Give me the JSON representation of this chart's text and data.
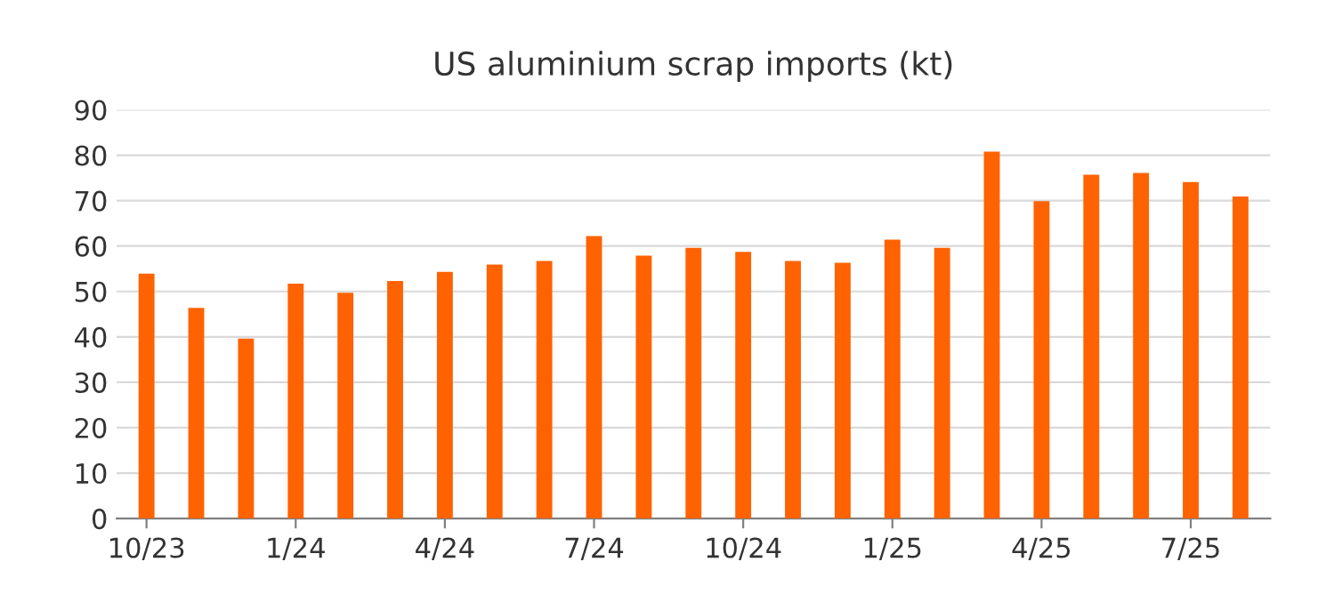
{
  "chart_data": {
    "type": "bar",
    "title": "US aluminium scrap imports (kt)",
    "categories": [
      "10/23",
      null,
      null,
      "1/24",
      null,
      null,
      "4/24",
      null,
      null,
      "7/24",
      null,
      null,
      "10/24",
      null,
      null,
      "1/25",
      null,
      null,
      "4/25",
      null,
      null,
      "7/25",
      null
    ],
    "values": [
      53.9,
      46.4,
      39.6,
      51.7,
      49.7,
      52.3,
      54.3,
      55.9,
      56.7,
      62.2,
      57.9,
      59.6,
      58.7,
      56.7,
      56.3,
      61.4,
      59.6,
      80.8,
      69.9,
      75.7,
      76.1,
      74.1,
      70.9
    ],
    "color": "#ff6200",
    "ylim": [
      0,
      90
    ],
    "yticks": [
      0,
      10,
      20,
      30,
      40,
      50,
      60,
      70,
      80,
      90
    ],
    "grid": "y"
  }
}
